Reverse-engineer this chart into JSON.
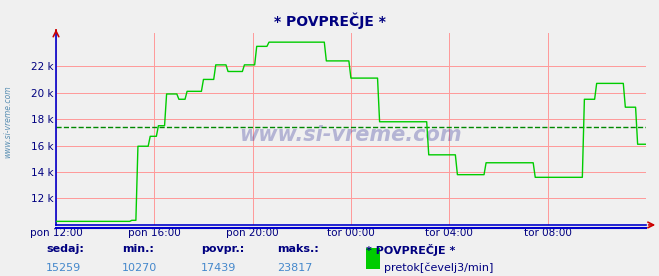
{
  "title": "* POVPREČJE *",
  "title_color": "#000080",
  "bg_color": "#f0f0f0",
  "plot_bg_color": "#f0f0f0",
  "line_color": "#00cc00",
  "line_width": 1.0,
  "avg_line_value": 17439,
  "avg_line_color": "#008800",
  "avg_line_style": "--",
  "grid_color": "#ff9999",
  "xlim_start": 0,
  "xlim_end": 288,
  "ylim_min": 10000,
  "ylim_max": 24500,
  "yticks": [
    12000,
    14000,
    16000,
    18000,
    20000,
    22000
  ],
  "ytick_labels": [
    "12 k",
    "14 k",
    "16 k",
    "18 k",
    "20 k",
    "22 k"
  ],
  "xtick_positions": [
    0,
    48,
    96,
    144,
    192,
    240
  ],
  "xtick_labels": [
    "pon 12:00",
    "pon 16:00",
    "pon 20:00",
    "tor 00:00",
    "tor 04:00",
    "tor 08:00"
  ],
  "watermark": "www.si-vreme.com",
  "watermark_color": "#1a1a8c",
  "footer_labels": [
    "sedaj:",
    "min.:",
    "povpr.:",
    "maks.:"
  ],
  "footer_values": [
    "15259",
    "10270",
    "17439",
    "23817"
  ],
  "footer_series_name": "* POVPREČJE *",
  "footer_legend_label": "pretok[čevelj3/min]",
  "footer_legend_color": "#00cc00",
  "ylabel_text": "www.si-vreme.com",
  "values": [
    10270,
    10270,
    10270,
    10270,
    10270,
    10270,
    10270,
    10270,
    10270,
    10270,
    10270,
    10270,
    10270,
    10270,
    10270,
    10270,
    10270,
    10270,
    10270,
    10270,
    10270,
    10270,
    10270,
    10270,
    10270,
    10270,
    10270,
    10270,
    10270,
    10270,
    10270,
    10270,
    10270,
    10270,
    10270,
    10270,
    10270,
    10350,
    10350,
    10350,
    15950,
    15950,
    15950,
    15950,
    15950,
    15950,
    16700,
    16700,
    16700,
    16700,
    17500,
    17500,
    17500,
    17500,
    19900,
    19900,
    19900,
    19900,
    19900,
    19900,
    19500,
    19500,
    19500,
    19500,
    20100,
    20100,
    20100,
    20100,
    20100,
    20100,
    20100,
    20100,
    21000,
    21000,
    21000,
    21000,
    21000,
    21000,
    22100,
    22100,
    22100,
    22100,
    22100,
    22100,
    21600,
    21600,
    21600,
    21600,
    21600,
    21600,
    21600,
    21600,
    22100,
    22100,
    22100,
    22100,
    22100,
    22100,
    23500,
    23500,
    23500,
    23500,
    23500,
    23500,
    23817,
    23817,
    23817,
    23817,
    23817,
    23817,
    23817,
    23817,
    23817,
    23817,
    23817,
    23817,
    23817,
    23817,
    23817,
    23817,
    23817,
    23817,
    23817,
    23817,
    23817,
    23817,
    23817,
    23817,
    23817,
    23817,
    23817,
    23817,
    22400,
    22400,
    22400,
    22400,
    22400,
    22400,
    22400,
    22400,
    22400,
    22400,
    22400,
    22400,
    21100,
    21100,
    21100,
    21100,
    21100,
    21100,
    21100,
    21100,
    21100,
    21100,
    21100,
    21100,
    21100,
    21100,
    17800,
    17800,
    17800,
    17800,
    17800,
    17800,
    17800,
    17800,
    17800,
    17800,
    17800,
    17800,
    17800,
    17800,
    17800,
    17800,
    17800,
    17800,
    17800,
    17800,
    17800,
    17800,
    17800,
    17800,
    15300,
    15300,
    15300,
    15300,
    15300,
    15300,
    15300,
    15300,
    15300,
    15300,
    15300,
    15300,
    15300,
    15300,
    13800,
    13800,
    13800,
    13800,
    13800,
    13800,
    13800,
    13800,
    13800,
    13800,
    13800,
    13800,
    13800,
    13800,
    14700,
    14700,
    14700,
    14700,
    14700,
    14700,
    14700,
    14700,
    14700,
    14700,
    14700,
    14700,
    14700,
    14700,
    14700,
    14700,
    14700,
    14700,
    14700,
    14700,
    14700,
    14700,
    14700,
    14700,
    13600,
    13600,
    13600,
    13600,
    13600,
    13600,
    13600,
    13600,
    13600,
    13600,
    13600,
    13600,
    13600,
    13600,
    13600,
    13600,
    13600,
    13600,
    13600,
    13600,
    13600,
    13600,
    13600,
    13600,
    19500,
    19500,
    19500,
    19500,
    19500,
    19500,
    20700,
    20700,
    20700,
    20700,
    20700,
    20700,
    20700,
    20700,
    20700,
    20700,
    20700,
    20700,
    20700,
    20700,
    18900,
    18900,
    18900,
    18900,
    18900,
    18900,
    16100,
    16100,
    16100,
    16100,
    16100,
    16100,
    15259
  ]
}
